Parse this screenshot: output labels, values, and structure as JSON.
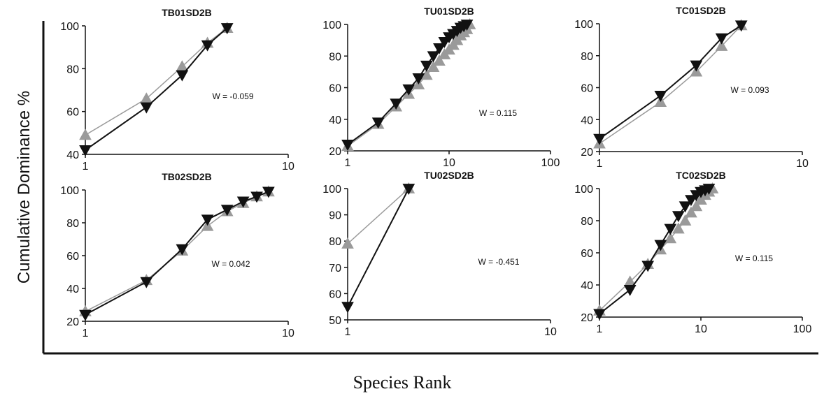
{
  "figure": {
    "ylabel": "Cumulative Dominance %",
    "xlabel": "Species Rank"
  },
  "chart_data": [
    {
      "type": "line",
      "title": "TB01SD2B",
      "annotation": "W = -0.059",
      "xscale": "log",
      "xlim": [
        1,
        10
      ],
      "ylim": [
        40,
        100
      ],
      "xticks": [
        "1",
        "10"
      ],
      "yticks": [
        "40",
        "60",
        "80",
        "100"
      ],
      "series": [
        {
          "x": [
            1,
            2,
            3,
            4,
            5
          ],
          "values": [
            49,
            66,
            81,
            92,
            99
          ],
          "color": "#9a9a9a",
          "marker": "triangle-up"
        },
        {
          "x": [
            1,
            2,
            3,
            4,
            5
          ],
          "values": [
            42,
            62,
            77,
            91,
            99
          ],
          "color": "#111111",
          "marker": "triangle-down"
        }
      ]
    },
    {
      "type": "line",
      "title": "TU01SD2B",
      "annotation": "W = 0.115",
      "xscale": "log",
      "xlim": [
        1,
        100
      ],
      "ylim": [
        20,
        100
      ],
      "xticks": [
        "1",
        "10",
        "100"
      ],
      "yticks": [
        "20",
        "40",
        "60",
        "80",
        "100"
      ],
      "series": [
        {
          "x": [
            1,
            2,
            3,
            4,
            5,
            6,
            7,
            8,
            9,
            10,
            11,
            12,
            13,
            14,
            15,
            16
          ],
          "values": [
            23,
            37,
            48,
            56,
            62,
            68,
            73,
            77,
            81,
            84,
            87,
            90,
            93,
            95,
            97,
            100
          ],
          "color": "#9a9a9a",
          "marker": "triangle-up"
        },
        {
          "x": [
            1,
            2,
            3,
            4,
            5,
            6,
            7,
            8,
            9,
            10,
            11,
            12,
            13,
            14,
            15
          ],
          "values": [
            24,
            38,
            50,
            59,
            66,
            74,
            80,
            85,
            89,
            92,
            94,
            96,
            98,
            99,
            100
          ],
          "color": "#111111",
          "marker": "triangle-down"
        }
      ]
    },
    {
      "type": "line",
      "title": "TC01SD2B",
      "annotation": "W = 0.093",
      "xscale": "log",
      "xlim": [
        1,
        10
      ],
      "ylim": [
        20,
        100
      ],
      "xticks": [
        "1",
        "10"
      ],
      "yticks": [
        "20",
        "40",
        "60",
        "80",
        "100"
      ],
      "series": [
        {
          "x": [
            1,
            2,
            3,
            4,
            5
          ],
          "values": [
            25,
            51,
            70,
            86,
            99
          ],
          "color": "#9a9a9a",
          "marker": "triangle-up"
        },
        {
          "x": [
            1,
            2,
            3,
            4,
            5
          ],
          "values": [
            28,
            55,
            74,
            91,
            99
          ],
          "color": "#111111",
          "marker": "triangle-down"
        }
      ]
    },
    {
      "type": "line",
      "title": "TB02SD2B",
      "annotation": "W = 0.042",
      "xscale": "log",
      "xlim": [
        1,
        10
      ],
      "ylim": [
        20,
        100
      ],
      "xticks": [
        "1",
        "10"
      ],
      "yticks": [
        "20",
        "40",
        "60",
        "80",
        "100"
      ],
      "series": [
        {
          "x": [
            1,
            2,
            3,
            4,
            5,
            6,
            7,
            8
          ],
          "values": [
            26,
            45,
            63,
            78,
            87,
            92,
            96,
            99
          ],
          "color": "#9a9a9a",
          "marker": "triangle-up"
        },
        {
          "x": [
            1,
            2,
            3,
            4,
            5,
            6,
            7,
            8
          ],
          "values": [
            24,
            44,
            64,
            82,
            88,
            93,
            96,
            99
          ],
          "color": "#111111",
          "marker": "triangle-down"
        }
      ]
    },
    {
      "type": "line",
      "title": "TU02SD2B",
      "annotation": "W = -0.451",
      "xscale": "log",
      "xlim": [
        1,
        10
      ],
      "ylim": [
        50,
        100
      ],
      "xticks": [
        "1",
        "10"
      ],
      "yticks": [
        "50",
        "60",
        "70",
        "80",
        "90",
        "100"
      ],
      "series": [
        {
          "x": [
            1,
            2
          ],
          "values": [
            79,
            100
          ],
          "color": "#9a9a9a",
          "marker": "triangle-up"
        },
        {
          "x": [
            1,
            2
          ],
          "values": [
            55,
            100
          ],
          "color": "#111111",
          "marker": "triangle-down"
        }
      ]
    },
    {
      "type": "line",
      "title": "TC02SD2B",
      "annotation": "W = 0.115",
      "xscale": "log",
      "xlim": [
        1,
        100
      ],
      "ylim": [
        20,
        100
      ],
      "xticks": [
        "1",
        "10",
        "100"
      ],
      "yticks": [
        "20",
        "40",
        "60",
        "80",
        "100"
      ],
      "series": [
        {
          "x": [
            1,
            2,
            3,
            4,
            5,
            6,
            7,
            8,
            9,
            10,
            11,
            12,
            13
          ],
          "values": [
            24,
            42,
            53,
            62,
            69,
            75,
            80,
            85,
            89,
            93,
            96,
            98,
            100
          ],
          "color": "#9a9a9a",
          "marker": "triangle-up"
        },
        {
          "x": [
            1,
            2,
            3,
            4,
            5,
            6,
            7,
            8,
            9,
            10,
            11,
            12
          ],
          "values": [
            22,
            37,
            52,
            65,
            75,
            83,
            89,
            93,
            96,
            98,
            99,
            100
          ],
          "color": "#111111",
          "marker": "triangle-down"
        }
      ]
    }
  ]
}
